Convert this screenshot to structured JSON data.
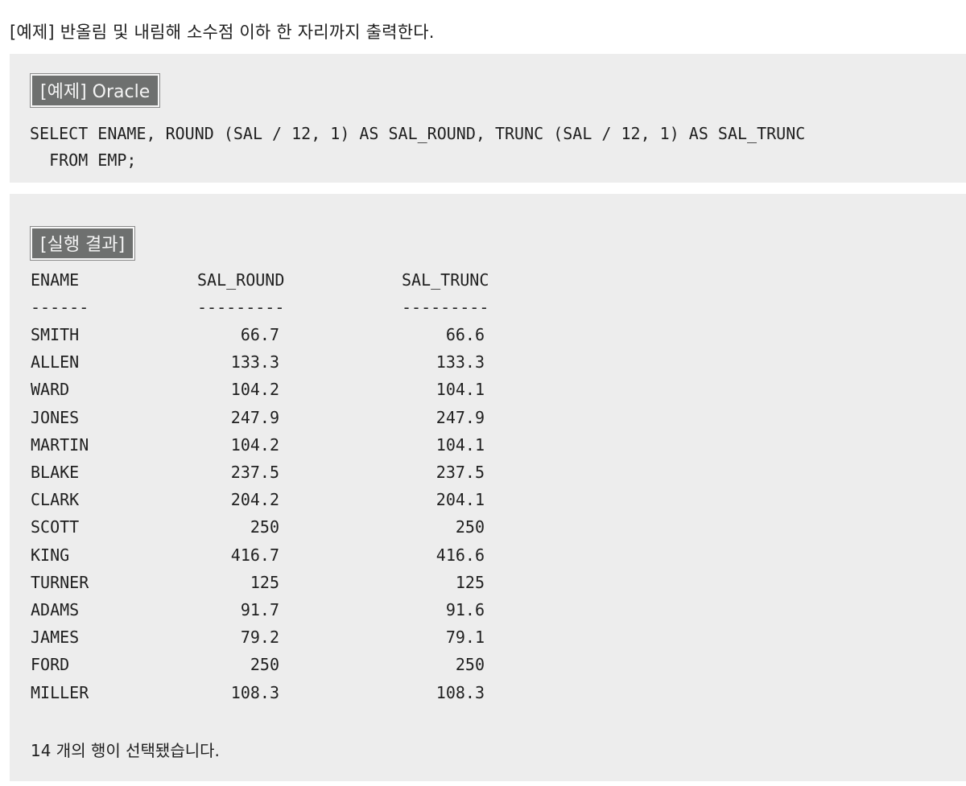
{
  "heading": "[예제] 반올림 및 내림해 소수점 이하 한 자리까지 출력한다.",
  "code_section": {
    "tag": "[예제] Oracle",
    "lines": [
      "SELECT ENAME, ROUND (SAL / 12, 1) AS SAL_ROUND, TRUNC (SAL / 12, 1) AS SAL_TRUNC",
      "  FROM EMP;"
    ]
  },
  "result_section": {
    "tag": "[실행 결과]",
    "columns": [
      "ENAME",
      "SAL_ROUND",
      "SAL_TRUNC"
    ],
    "separators": [
      "------",
      "---------",
      "---------"
    ],
    "rows": [
      [
        "SMITH",
        "66.7",
        "66.6"
      ],
      [
        "ALLEN",
        "133.3",
        "133.3"
      ],
      [
        "WARD",
        "104.2",
        "104.1"
      ],
      [
        "JONES",
        "247.9",
        "247.9"
      ],
      [
        "MARTIN",
        "104.2",
        "104.1"
      ],
      [
        "BLAKE",
        "237.5",
        "237.5"
      ],
      [
        "CLARK",
        "204.2",
        "204.1"
      ],
      [
        "SCOTT",
        "250",
        "250"
      ],
      [
        "KING",
        "416.7",
        "416.6"
      ],
      [
        "TURNER",
        "125",
        "125"
      ],
      [
        "ADAMS",
        "91.7",
        "91.6"
      ],
      [
        "JAMES",
        "79.2",
        "79.1"
      ],
      [
        "FORD",
        "250",
        "250"
      ],
      [
        "MILLER",
        "108.3",
        "108.3"
      ]
    ],
    "footer": "14 개의 행이 선택됐습니다."
  }
}
